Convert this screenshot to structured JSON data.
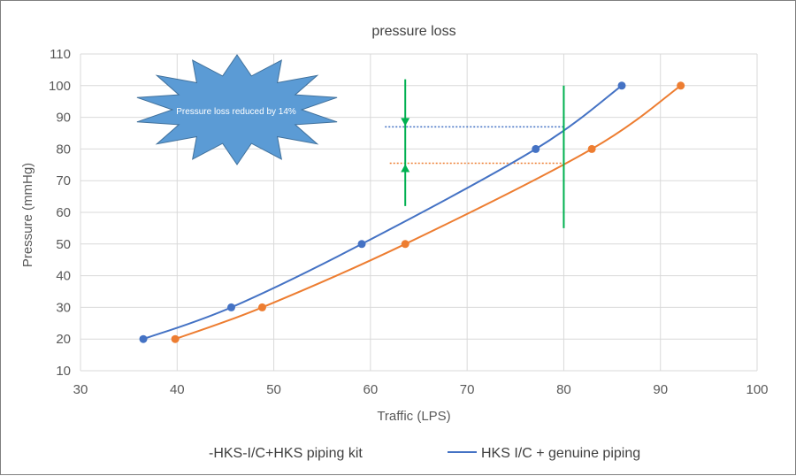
{
  "chart_data": {
    "type": "scatter",
    "title": "pressure loss",
    "xlabel": "Traffic (LPS)",
    "ylabel": "Pressure (mmHg)",
    "xlim": [
      30,
      100
    ],
    "ylim": [
      10,
      110
    ],
    "xticks": [
      "30",
      "40",
      "50",
      "60",
      "70",
      "80",
      "90",
      "100"
    ],
    "yticks": [
      "10",
      "20",
      "30",
      "40",
      "50",
      "60",
      "70",
      "80",
      "90",
      "100",
      "110"
    ],
    "grid": true,
    "legend_position": "bottom",
    "series": [
      {
        "name": "-HKS-I/C+HKS piping kit",
        "color": "#ed7d31",
        "x": [
          39.8,
          48.8,
          63.6,
          82.9,
          92.1
        ],
        "y": [
          20,
          30,
          50,
          80,
          100
        ]
      },
      {
        "name": "HKS I/C + genuine piping",
        "color": "#4472c4",
        "x": [
          36.5,
          45.6,
          59.1,
          77.1,
          86.0
        ],
        "y": [
          20,
          30,
          50,
          80,
          100
        ]
      }
    ],
    "annotations": {
      "callout_text": "Pressure loss reduced by 14%",
      "callout_color": "#5b9bd5",
      "marker_color": "#00b050",
      "reference_x": 80,
      "reference_y_range": [
        55,
        100
      ],
      "arrow_x": 63.6,
      "arrow_y_range": [
        62,
        102
      ],
      "blue_reference_y": 87,
      "orange_reference_y": 75.5,
      "blue_dotted_x_range": [
        61.5,
        80
      ],
      "orange_dotted_x_range": [
        62.0,
        80
      ]
    }
  }
}
